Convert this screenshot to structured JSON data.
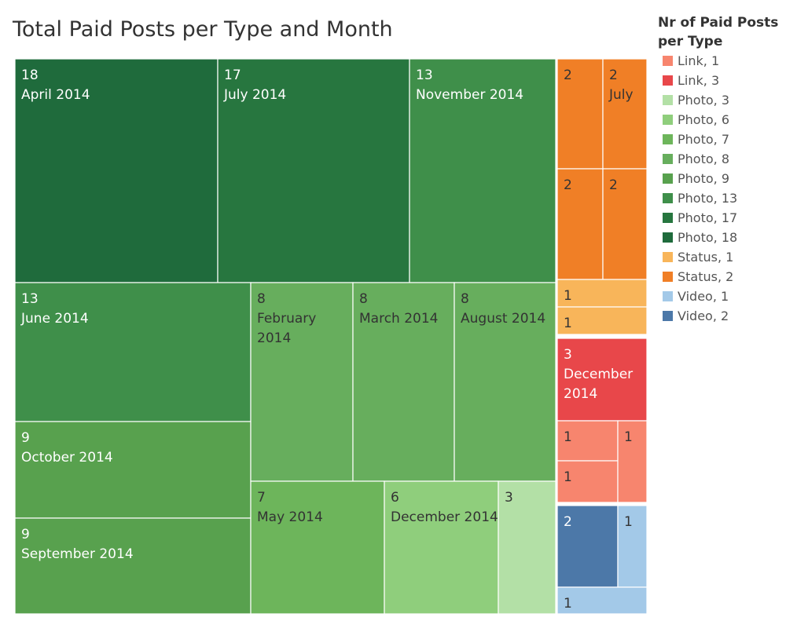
{
  "title": "Total Paid Posts per Type and Month",
  "legend": {
    "title_line1": "Nr of Paid Posts",
    "title_line2": "per Type",
    "items": [
      {
        "label": "Link, 1",
        "color": "#f7856e"
      },
      {
        "label": "Link, 3",
        "color": "#e8474a"
      },
      {
        "label": "Photo, 3",
        "color": "#b3e0a6"
      },
      {
        "label": "Photo, 6",
        "color": "#8fce7c"
      },
      {
        "label": "Photo, 7",
        "color": "#6db55b"
      },
      {
        "label": "Photo, 8",
        "color": "#67ae5d"
      },
      {
        "label": "Photo, 9",
        "color": "#58a14e"
      },
      {
        "label": "Photo, 13",
        "color": "#3f8f4a"
      },
      {
        "label": "Photo, 17",
        "color": "#27763f"
      },
      {
        "label": "Photo, 18",
        "color": "#1f6b3c"
      },
      {
        "label": "Status, 1",
        "color": "#f8b55a"
      },
      {
        "label": "Status, 2",
        "color": "#f07f26"
      },
      {
        "label": "Video, 1",
        "color": "#a3c9e8"
      },
      {
        "label": "Video, 2",
        "color": "#4c78a8"
      }
    ]
  },
  "chart_data": {
    "type": "treemap",
    "title": "Total Paid Posts per Type and Month",
    "measure": "Nr of Paid Posts",
    "groups": [
      {
        "type": "Photo",
        "cells": [
          {
            "value": 18,
            "label": "April 2014"
          },
          {
            "value": 17,
            "label": "July 2014"
          },
          {
            "value": 13,
            "label": "November 2014"
          },
          {
            "value": 13,
            "label": "June 2014"
          },
          {
            "value": 9,
            "label": "October 2014"
          },
          {
            "value": 9,
            "label": "September 2014"
          },
          {
            "value": 8,
            "label": "February 2014"
          },
          {
            "value": 8,
            "label": "March 2014"
          },
          {
            "value": 8,
            "label": "August 2014"
          },
          {
            "value": 7,
            "label": "May 2014"
          },
          {
            "value": 6,
            "label": "December 2014"
          },
          {
            "value": 3,
            "label": ""
          }
        ]
      },
      {
        "type": "Status",
        "cells": [
          {
            "value": 2,
            "label": ""
          },
          {
            "value": 2,
            "label": "July"
          },
          {
            "value": 2,
            "label": ""
          },
          {
            "value": 2,
            "label": ""
          },
          {
            "value": 1,
            "label": ""
          },
          {
            "value": 1,
            "label": ""
          }
        ]
      },
      {
        "type": "Link",
        "cells": [
          {
            "value": 3,
            "label": "December 2014"
          },
          {
            "value": 1,
            "label": ""
          },
          {
            "value": 1,
            "label": ""
          },
          {
            "value": 1,
            "label": ""
          }
        ]
      },
      {
        "type": "Video",
        "cells": [
          {
            "value": 2,
            "label": ""
          },
          {
            "value": 1,
            "label": ""
          },
          {
            "value": 1,
            "label": ""
          }
        ]
      }
    ]
  }
}
